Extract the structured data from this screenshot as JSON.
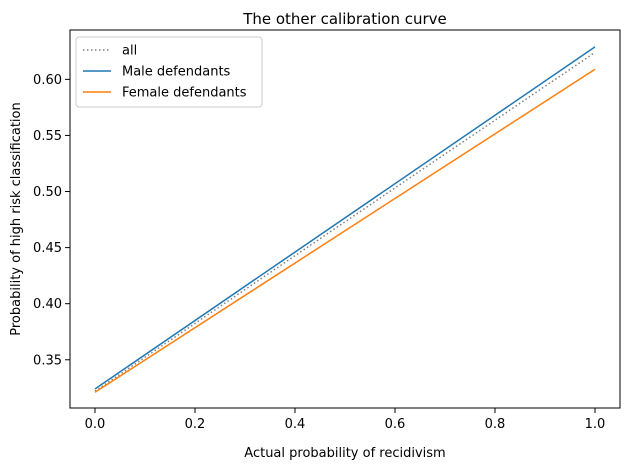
{
  "chart_data": {
    "type": "line",
    "title": "The other calibration curve",
    "xlabel": "Actual probability of recidivism",
    "ylabel": "Probability of high risk classification",
    "xlim": [
      -0.05,
      1.05
    ],
    "ylim": [
      0.307,
      0.644
    ],
    "xticks": [
      0.0,
      0.2,
      0.4,
      0.6,
      0.8,
      1.0
    ],
    "xtick_labels": [
      "0.0",
      "0.2",
      "0.4",
      "0.6",
      "0.8",
      "1.0"
    ],
    "yticks": [
      0.35,
      0.4,
      0.45,
      0.5,
      0.55,
      0.6
    ],
    "ytick_labels": [
      "0.35",
      "0.40",
      "0.45",
      "0.50",
      "0.55",
      "0.60"
    ],
    "grid": false,
    "legend_position": "top-left",
    "series": [
      {
        "name": "all",
        "x": [
          0.0,
          1.0
        ],
        "y": [
          0.322,
          0.624
        ],
        "color": "#7f7f7f",
        "style": "dotted"
      },
      {
        "name": "Male defendants",
        "x": [
          0.0,
          1.0
        ],
        "y": [
          0.324,
          0.629
        ],
        "color": "#1f77b4",
        "style": "solid"
      },
      {
        "name": "Female defendants",
        "x": [
          0.0,
          1.0
        ],
        "y": [
          0.321,
          0.609
        ],
        "color": "#ff7f0e",
        "style": "solid"
      }
    ]
  }
}
